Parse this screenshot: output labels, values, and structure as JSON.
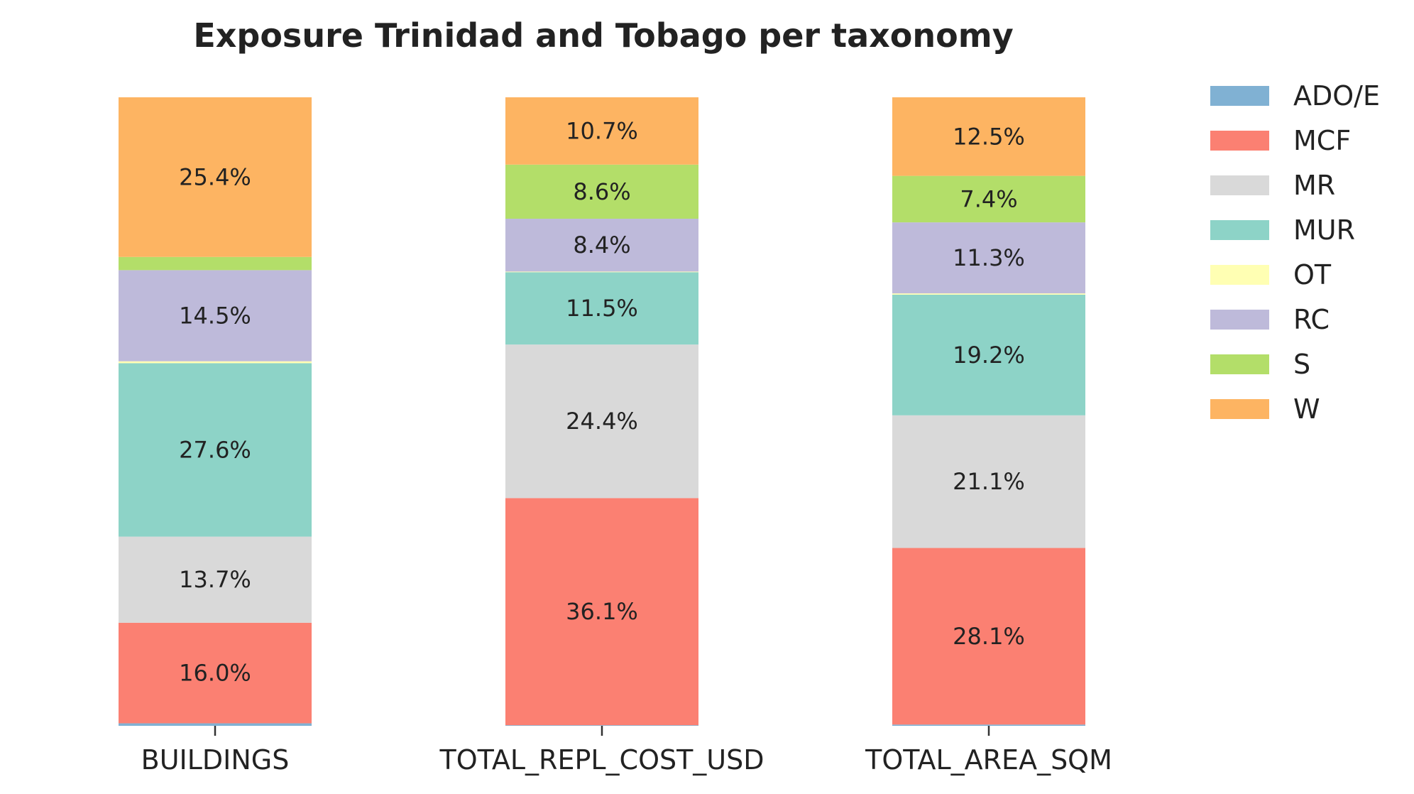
{
  "chart_data": {
    "type": "bar",
    "stacked": true,
    "normalized": true,
    "title": "Exposure Trinidad and Tobago per taxonomy",
    "xlabel": "",
    "ylabel": "",
    "ylim": [
      0,
      100
    ],
    "grid": false,
    "legend_placement": "outside-right",
    "categories": [
      "BUILDINGS",
      "TOTAL_REPL_COST_USD",
      "TOTAL_AREA_SQM"
    ],
    "series": [
      {
        "name": "ADO/E",
        "color": "#80b1d3",
        "values": [
          0.4,
          0.1,
          0.2
        ],
        "labels": [
          "",
          "",
          ""
        ]
      },
      {
        "name": "MCF",
        "color": "#fb8072",
        "values": [
          16.0,
          36.1,
          28.1
        ],
        "labels": [
          "16.0%",
          "36.1%",
          "28.1%"
        ]
      },
      {
        "name": "MR",
        "color": "#d9d9d9",
        "values": [
          13.7,
          24.4,
          21.1
        ],
        "labels": [
          "13.7%",
          "24.4%",
          "21.1%"
        ]
      },
      {
        "name": "MUR",
        "color": "#8dd3c7",
        "values": [
          27.6,
          11.5,
          19.2
        ],
        "labels": [
          "27.6%",
          "11.5%",
          "19.2%"
        ]
      },
      {
        "name": "OT",
        "color": "#ffffb3",
        "values": [
          0.3,
          0.1,
          0.2
        ],
        "labels": [
          "",
          "",
          ""
        ]
      },
      {
        "name": "RC",
        "color": "#bebada",
        "values": [
          14.5,
          8.4,
          11.3
        ],
        "labels": [
          "14.5%",
          "8.4%",
          "11.3%"
        ]
      },
      {
        "name": "S",
        "color": "#b3de69",
        "values": [
          2.1,
          8.6,
          7.4
        ],
        "labels": [
          "",
          "8.6%",
          "7.4%"
        ]
      },
      {
        "name": "W",
        "color": "#fdb462",
        "values": [
          25.4,
          10.7,
          12.5
        ],
        "labels": [
          "25.4%",
          "10.7%",
          "12.5%"
        ]
      }
    ]
  }
}
